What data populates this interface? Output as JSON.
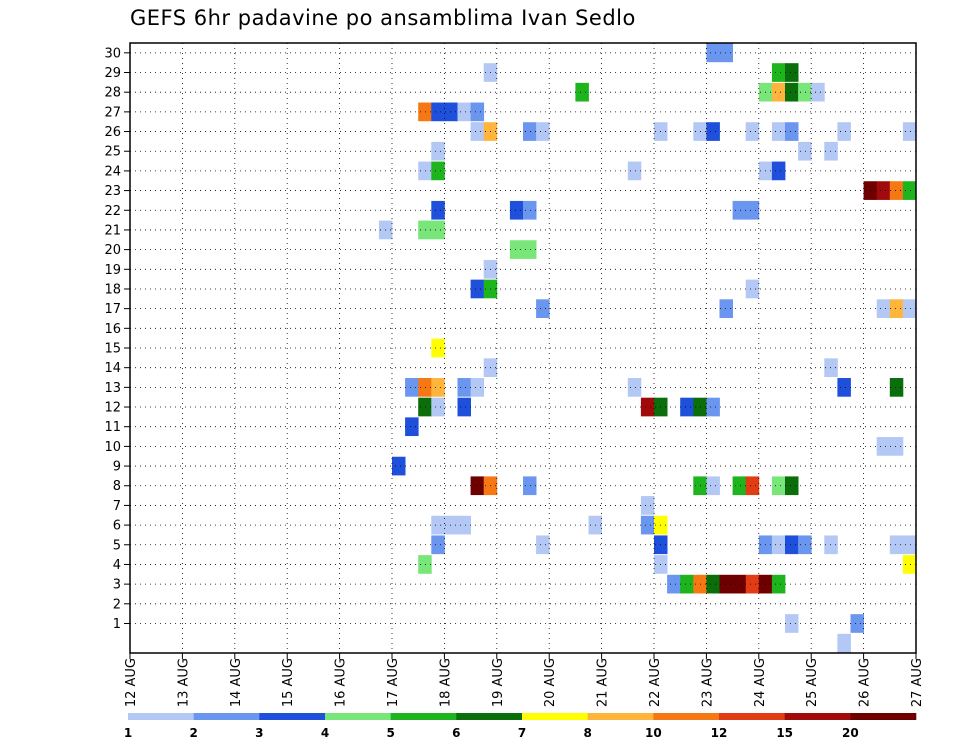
{
  "chart_data": {
    "type": "heatmap",
    "title": "GEFS 6hr padavine po ansamblima Ivan Sedlo",
    "xlabel": "",
    "ylabel": "",
    "x_tick_labels": [
      "12 AUG",
      "13 AUG",
      "14 AUG",
      "15 AUG",
      "16 AUG",
      "17 AUG",
      "18 AUG",
      "19 AUG",
      "20 AUG",
      "21 AUG",
      "22 AUG",
      "23 AUG",
      "24 AUG",
      "25 AUG",
      "26 AUG",
      "27 AUG"
    ],
    "xlim_days": [
      12,
      27
    ],
    "step_hours": 6,
    "y_tick_labels": [
      "1",
      "2",
      "3",
      "4",
      "5",
      "6",
      "7",
      "8",
      "9",
      "10",
      "11",
      "12",
      "13",
      "14",
      "15",
      "16",
      "17",
      "18",
      "19",
      "20",
      "21",
      "22",
      "23",
      "24",
      "25",
      "26",
      "27",
      "28",
      "29",
      "30"
    ],
    "ylim": [
      0,
      30
    ],
    "grid": true,
    "colorbar": {
      "labels": [
        "1",
        "2",
        "3",
        "4",
        "5",
        "6",
        "7",
        "8",
        "10",
        "12",
        "15",
        "20"
      ],
      "bounds": [
        1,
        2,
        3,
        4,
        5,
        6,
        7,
        8,
        10,
        12,
        15,
        20
      ],
      "colors": [
        "#b4c8f5",
        "#6b96f0",
        "#1e50dc",
        "#78e678",
        "#1eb41e",
        "#0a6e0a",
        "#ffff00",
        "#ffb43c",
        "#f57814",
        "#e13c14",
        "#a00a0a",
        "#6e0000"
      ]
    },
    "cells": [
      {
        "member": 30,
        "day": 23.0,
        "level": 2
      },
      {
        "member": 30,
        "day": 23.25,
        "level": 2
      },
      {
        "member": 29,
        "day": 18.75,
        "level": 1
      },
      {
        "member": 29,
        "day": 24.25,
        "level": 5
      },
      {
        "member": 29,
        "day": 24.5,
        "level": 6
      },
      {
        "member": 28,
        "day": 20.5,
        "level": 5
      },
      {
        "member": 28,
        "day": 24.0,
        "level": 4
      },
      {
        "member": 28,
        "day": 24.25,
        "level": 8
      },
      {
        "member": 28,
        "day": 24.5,
        "level": 6
      },
      {
        "member": 28,
        "day": 24.75,
        "level": 4
      },
      {
        "member": 28,
        "day": 25.0,
        "level": 1
      },
      {
        "member": 27,
        "day": 17.5,
        "level": 9
      },
      {
        "member": 27,
        "day": 17.75,
        "level": 3
      },
      {
        "member": 27,
        "day": 18.0,
        "level": 3
      },
      {
        "member": 27,
        "day": 18.25,
        "level": 1
      },
      {
        "member": 27,
        "day": 18.5,
        "level": 2
      },
      {
        "member": 26,
        "day": 18.5,
        "level": 1
      },
      {
        "member": 26,
        "day": 18.75,
        "level": 8
      },
      {
        "member": 26,
        "day": 19.5,
        "level": 2
      },
      {
        "member": 26,
        "day": 19.75,
        "level": 1
      },
      {
        "member": 26,
        "day": 22.0,
        "level": 1
      },
      {
        "member": 26,
        "day": 22.75,
        "level": 1
      },
      {
        "member": 26,
        "day": 23.0,
        "level": 3
      },
      {
        "member": 26,
        "day": 23.75,
        "level": 1
      },
      {
        "member": 26,
        "day": 24.25,
        "level": 1
      },
      {
        "member": 26,
        "day": 24.5,
        "level": 2
      },
      {
        "member": 26,
        "day": 25.5,
        "level": 1
      },
      {
        "member": 26,
        "day": 26.75,
        "level": 1
      },
      {
        "member": 25,
        "day": 17.75,
        "level": 1
      },
      {
        "member": 25,
        "day": 24.75,
        "level": 1
      },
      {
        "member": 25,
        "day": 25.25,
        "level": 1
      },
      {
        "member": 24,
        "day": 17.5,
        "level": 1
      },
      {
        "member": 24,
        "day": 17.75,
        "level": 5
      },
      {
        "member": 24,
        "day": 21.5,
        "level": 1
      },
      {
        "member": 24,
        "day": 24.0,
        "level": 1
      },
      {
        "member": 24,
        "day": 24.25,
        "level": 3
      },
      {
        "member": 23,
        "day": 26.0,
        "level": 12
      },
      {
        "member": 23,
        "day": 26.25,
        "level": 11
      },
      {
        "member": 23,
        "day": 26.5,
        "level": 9
      },
      {
        "member": 23,
        "day": 26.75,
        "level": 5
      },
      {
        "member": 22,
        "day": 17.75,
        "level": 3
      },
      {
        "member": 22,
        "day": 19.25,
        "level": 3
      },
      {
        "member": 22,
        "day": 19.5,
        "level": 2
      },
      {
        "member": 22,
        "day": 23.5,
        "level": 2
      },
      {
        "member": 22,
        "day": 23.75,
        "level": 2
      },
      {
        "member": 21,
        "day": 16.75,
        "level": 1
      },
      {
        "member": 21,
        "day": 17.5,
        "level": 4
      },
      {
        "member": 21,
        "day": 17.75,
        "level": 4
      },
      {
        "member": 20,
        "day": 19.25,
        "level": 4
      },
      {
        "member": 20,
        "day": 19.5,
        "level": 4
      },
      {
        "member": 19,
        "day": 18.75,
        "level": 1
      },
      {
        "member": 18,
        "day": 18.5,
        "level": 3
      },
      {
        "member": 18,
        "day": 18.75,
        "level": 5
      },
      {
        "member": 18,
        "day": 23.75,
        "level": 1
      },
      {
        "member": 17,
        "day": 19.75,
        "level": 2
      },
      {
        "member": 17,
        "day": 23.25,
        "level": 2
      },
      {
        "member": 17,
        "day": 26.25,
        "level": 1
      },
      {
        "member": 17,
        "day": 26.5,
        "level": 8
      },
      {
        "member": 17,
        "day": 26.75,
        "level": 1
      },
      {
        "member": 15,
        "day": 17.75,
        "level": 7
      },
      {
        "member": 14,
        "day": 18.75,
        "level": 1
      },
      {
        "member": 14,
        "day": 25.25,
        "level": 1
      },
      {
        "member": 13,
        "day": 17.25,
        "level": 2
      },
      {
        "member": 13,
        "day": 17.5,
        "level": 9
      },
      {
        "member": 13,
        "day": 17.75,
        "level": 8
      },
      {
        "member": 13,
        "day": 18.25,
        "level": 2
      },
      {
        "member": 13,
        "day": 18.5,
        "level": 1
      },
      {
        "member": 13,
        "day": 21.5,
        "level": 1
      },
      {
        "member": 13,
        "day": 25.5,
        "level": 3
      },
      {
        "member": 13,
        "day": 26.5,
        "level": 6
      },
      {
        "member": 12,
        "day": 17.5,
        "level": 6
      },
      {
        "member": 12,
        "day": 17.75,
        "level": 1
      },
      {
        "member": 12,
        "day": 18.25,
        "level": 3
      },
      {
        "member": 12,
        "day": 21.75,
        "level": 11
      },
      {
        "member": 12,
        "day": 22.0,
        "level": 6
      },
      {
        "member": 12,
        "day": 22.5,
        "level": 3
      },
      {
        "member": 12,
        "day": 22.75,
        "level": 6
      },
      {
        "member": 12,
        "day": 23.0,
        "level": 2
      },
      {
        "member": 11,
        "day": 17.25,
        "level": 3
      },
      {
        "member": 10,
        "day": 26.25,
        "level": 1
      },
      {
        "member": 10,
        "day": 26.5,
        "level": 1
      },
      {
        "member": 9,
        "day": 17.0,
        "level": 3
      },
      {
        "member": 8,
        "day": 18.5,
        "level": 12
      },
      {
        "member": 8,
        "day": 18.75,
        "level": 9
      },
      {
        "member": 8,
        "day": 19.5,
        "level": 2
      },
      {
        "member": 8,
        "day": 22.75,
        "level": 5
      },
      {
        "member": 8,
        "day": 23.0,
        "level": 1
      },
      {
        "member": 8,
        "day": 23.5,
        "level": 5
      },
      {
        "member": 8,
        "day": 23.75,
        "level": 10
      },
      {
        "member": 8,
        "day": 24.25,
        "level": 4
      },
      {
        "member": 8,
        "day": 24.5,
        "level": 6
      },
      {
        "member": 7,
        "day": 21.75,
        "level": 1
      },
      {
        "member": 6,
        "day": 17.75,
        "level": 1
      },
      {
        "member": 6,
        "day": 18.0,
        "level": 1
      },
      {
        "member": 6,
        "day": 18.25,
        "level": 1
      },
      {
        "member": 6,
        "day": 20.75,
        "level": 1
      },
      {
        "member": 6,
        "day": 21.75,
        "level": 2
      },
      {
        "member": 6,
        "day": 22.0,
        "level": 7
      },
      {
        "member": 5,
        "day": 17.75,
        "level": 2
      },
      {
        "member": 5,
        "day": 19.75,
        "level": 1
      },
      {
        "member": 5,
        "day": 22.0,
        "level": 3
      },
      {
        "member": 5,
        "day": 24.0,
        "level": 2
      },
      {
        "member": 5,
        "day": 24.25,
        "level": 1
      },
      {
        "member": 5,
        "day": 24.5,
        "level": 3
      },
      {
        "member": 5,
        "day": 24.75,
        "level": 2
      },
      {
        "member": 5,
        "day": 25.25,
        "level": 1
      },
      {
        "member": 5,
        "day": 26.5,
        "level": 1
      },
      {
        "member": 5,
        "day": 26.75,
        "level": 1
      },
      {
        "member": 4,
        "day": 17.5,
        "level": 4
      },
      {
        "member": 4,
        "day": 22.0,
        "level": 1
      },
      {
        "member": 4,
        "day": 26.75,
        "level": 7
      },
      {
        "member": 3,
        "day": 22.25,
        "level": 2
      },
      {
        "member": 3,
        "day": 22.5,
        "level": 5
      },
      {
        "member": 3,
        "day": 22.75,
        "level": 9
      },
      {
        "member": 3,
        "day": 23.0,
        "level": 6
      },
      {
        "member": 3,
        "day": 23.25,
        "level": 12
      },
      {
        "member": 3,
        "day": 23.5,
        "level": 12
      },
      {
        "member": 3,
        "day": 23.75,
        "level": 10
      },
      {
        "member": 3,
        "day": 24.0,
        "level": 12
      },
      {
        "member": 3,
        "day": 24.25,
        "level": 5
      },
      {
        "member": 1,
        "day": 24.5,
        "level": 1
      },
      {
        "member": 1,
        "day": 25.75,
        "level": 2
      },
      {
        "member": 0,
        "day": 25.5,
        "level": 1
      }
    ]
  }
}
